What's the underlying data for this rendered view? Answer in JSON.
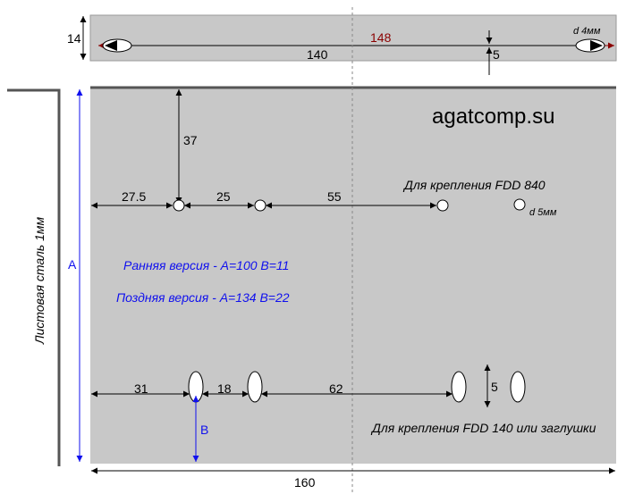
{
  "top_strip": {
    "height_dim": "14",
    "length_dim": "140",
    "total_dim": "148",
    "offset_dim": "5",
    "hole_label": "d 4мм"
  },
  "main_plate": {
    "watermark": "agatcomp.su",
    "side_label": "Листовая сталь 1мм",
    "dim_top_offset": "37",
    "dim_27_5": "27.5",
    "dim_25": "25",
    "dim_55": "55",
    "fdd840_label": "Для крепления FDD 840",
    "hole_5_label": "d 5мм",
    "version_early": "Ранняя версия - A=100  B=11",
    "version_late": "Поздняя версия - A=134  B=22",
    "dim_A": "A",
    "dim_B": "B",
    "dim_31": "31",
    "dim_18": "18",
    "dim_62": "62",
    "dim_slot_5": "5",
    "fdd140_label": "Для крепления FDD 140 или заглушки",
    "width_dim": "160"
  },
  "colors": {
    "plate": "#c8c8c8",
    "plate_edge": "#555555",
    "dim_line": "#000000",
    "blue": "#1010ee",
    "dark_red": "#8b0000"
  }
}
